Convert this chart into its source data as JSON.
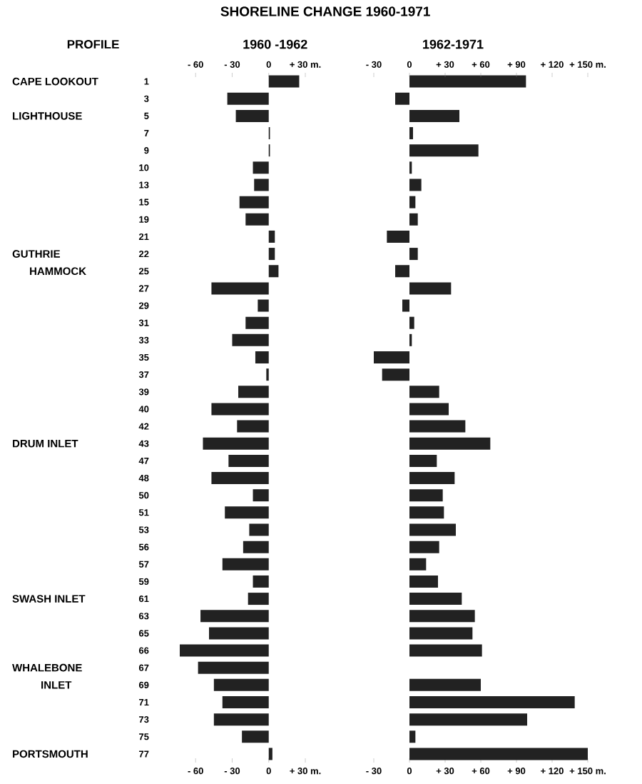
{
  "chart_data": [
    {
      "type": "bar",
      "orientation": "horizontal",
      "title": "SHORELINE CHANGE 1960-1971",
      "subtitle": "1960 -1962",
      "ylabel": "PROFILE",
      "color": "#222222",
      "categories": [
        "1",
        "3",
        "5",
        "7",
        "9",
        "10",
        "13",
        "15",
        "19",
        "21",
        "22",
        "25",
        "27",
        "29",
        "31",
        "33",
        "35",
        "37",
        "39",
        "40",
        "42",
        "43",
        "47",
        "48",
        "50",
        "51",
        "53",
        "56",
        "57",
        "59",
        "61",
        "63",
        "65",
        "66",
        "67",
        "69",
        "71",
        "73",
        "75",
        "77"
      ],
      "values": [
        25,
        -34,
        -27,
        1,
        1,
        -13,
        -12,
        -24,
        -19,
        5,
        5,
        8,
        -47,
        -9,
        -19,
        -30,
        -11,
        -2,
        -25,
        -47,
        -26,
        -54,
        -33,
        -47,
        -13,
        -36,
        -16,
        -21,
        -38,
        -13,
        -17,
        -56,
        -49,
        -73,
        -58,
        -45,
        -38,
        -45,
        -22,
        3
      ],
      "xlim": [
        -73,
        30
      ],
      "xticks": [
        {
          "value": -60,
          "label": "- 60"
        },
        {
          "value": -30,
          "label": "- 30"
        },
        0,
        {
          "value": 30,
          "label": "+ 30 m."
        }
      ],
      "x2lim": [
        -73,
        30
      ],
      "x2ticks": [
        {
          "value": -60,
          "label": "- 60"
        },
        {
          "value": -30,
          "label": "- 30"
        },
        0,
        {
          "value": 30,
          "label": "+ 30 m."
        }
      ],
      "annotations": [
        "CAPE LOOKOUT",
        "LIGHTHOUSE",
        "GUTHRIE",
        "HAMMOCK",
        "DRUM INLET",
        "SWASH INLET",
        "WHALEBONE",
        "INLET",
        "PORTSMOUTH"
      ]
    },
    {
      "type": "bar",
      "orientation": "horizontal",
      "subtitle": "1962-1971",
      "color": "#222222",
      "tick_labels": "x",
      "categories": [
        "1",
        "3",
        "5",
        "7",
        "9",
        "10",
        "13",
        "15",
        "19",
        "21",
        "22",
        "25",
        "27",
        "29",
        "31",
        "33",
        "35",
        "37",
        "39",
        "40",
        "42",
        "43",
        "47",
        "48",
        "50",
        "51",
        "53",
        "56",
        "57",
        "59",
        "61",
        "63",
        "65",
        "66",
        "67",
        "69",
        "71",
        "73",
        "75",
        "77"
      ],
      "values": [
        98,
        -12,
        42,
        3,
        58,
        2,
        10,
        5,
        7,
        -19,
        7,
        -12,
        35,
        -6,
        4,
        2,
        -30,
        -23,
        25,
        33,
        47,
        68,
        23,
        38,
        28,
        29,
        39,
        25,
        14,
        24,
        44,
        55,
        53,
        61,
        null,
        60,
        139,
        99,
        5,
        150
      ],
      "xlim": [
        -30,
        150
      ],
      "xticks": [
        {
          "value": -30,
          "label": "- 30"
        },
        0,
        {
          "value": 30,
          "label": "+ 30"
        },
        {
          "value": 60,
          "label": "+ 60"
        },
        {
          "value": 90,
          "label": "+ 90"
        },
        {
          "value": 120,
          "label": "+ 120"
        },
        {
          "value": 150,
          "label": "+ 150 m."
        }
      ],
      "x2lim": [
        -30,
        150
      ],
      "x2ticks": [
        {
          "value": -30,
          "label": "- 30"
        },
        0,
        {
          "value": 30,
          "label": "+ 30"
        },
        {
          "value": 60,
          "label": "+ 60"
        },
        {
          "value": 90,
          "label": "+ 90"
        },
        {
          "value": 120,
          "label": "+ 120"
        },
        {
          "value": 150,
          "label": "+ 150 m."
        }
      ]
    }
  ]
}
